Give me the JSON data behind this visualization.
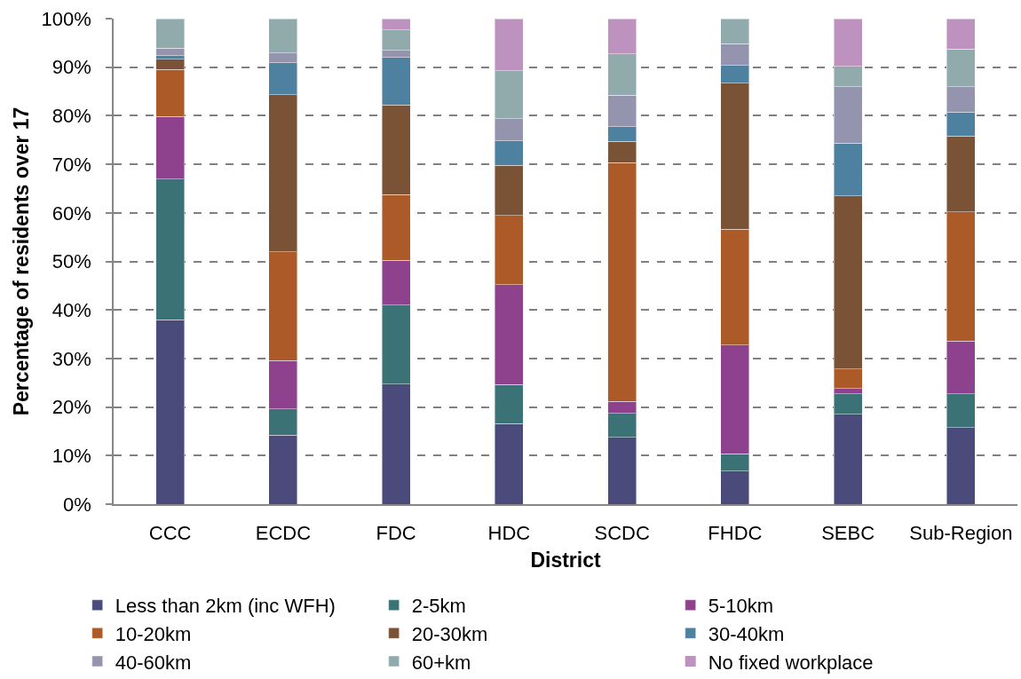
{
  "chart_data": {
    "type": "bar",
    "stacked": true,
    "xlabel": "District",
    "ylabel": "Percentage of residents over 17",
    "categories": [
      "CCC",
      "ECDC",
      "FDC",
      "HDC",
      "SCDC",
      "FHDC",
      "SEBC",
      "Sub-Region"
    ],
    "series": [
      {
        "name": "Less than 2km (inc WFH)",
        "color": "#4a4b7a",
        "values": [
          38.0,
          14.2,
          24.7,
          16.6,
          13.8,
          6.8,
          18.5,
          15.8
        ]
      },
      {
        "name": "2-5km",
        "color": "#3b7275",
        "values": [
          29.0,
          5.4,
          16.3,
          8.0,
          4.9,
          3.6,
          4.2,
          6.9
        ]
      },
      {
        "name": "5-10km",
        "color": "#8e418c",
        "values": [
          12.8,
          10.0,
          9.2,
          20.6,
          2.5,
          22.4,
          1.1,
          10.9
        ]
      },
      {
        "name": "10-20km",
        "color": "#ab5a28",
        "values": [
          9.7,
          22.4,
          13.6,
          14.3,
          49.1,
          23.8,
          4.0,
          26.6
        ]
      },
      {
        "name": "20-30km",
        "color": "#7a5236",
        "values": [
          2.1,
          32.3,
          18.4,
          10.3,
          4.4,
          30.1,
          35.7,
          15.6
        ]
      },
      {
        "name": "30-40km",
        "color": "#4e80a0",
        "values": [
          0.8,
          6.6,
          9.8,
          5.0,
          3.0,
          3.7,
          10.9,
          5.0
        ]
      },
      {
        "name": "40-60km",
        "color": "#9594ae",
        "values": [
          1.5,
          2.0,
          1.5,
          4.6,
          6.5,
          4.4,
          11.6,
          5.2
        ]
      },
      {
        "name": "60+km",
        "color": "#91aaac",
        "values": [
          6.1,
          7.1,
          4.2,
          9.9,
          8.5,
          5.2,
          4.2,
          7.7
        ]
      },
      {
        "name": "No fixed workplace",
        "color": "#be92be",
        "values": [
          0.0,
          0.0,
          2.3,
          10.7,
          7.3,
          0.0,
          9.8,
          6.3
        ]
      }
    ],
    "ylim": [
      0,
      100
    ],
    "yticks": [
      {
        "value": 0,
        "label": "0%"
      },
      {
        "value": 10,
        "label": "10%"
      },
      {
        "value": 20,
        "label": "20%"
      },
      {
        "value": 30,
        "label": "30%"
      },
      {
        "value": 40,
        "label": "40%"
      },
      {
        "value": 50,
        "label": "50%"
      },
      {
        "value": 60,
        "label": "60%"
      },
      {
        "value": 70,
        "label": "70%"
      },
      {
        "value": 80,
        "label": "80%"
      },
      {
        "value": 90,
        "label": "90%"
      },
      {
        "value": 100,
        "label": "100%"
      }
    ],
    "grid": "y",
    "legend": "bottom"
  }
}
